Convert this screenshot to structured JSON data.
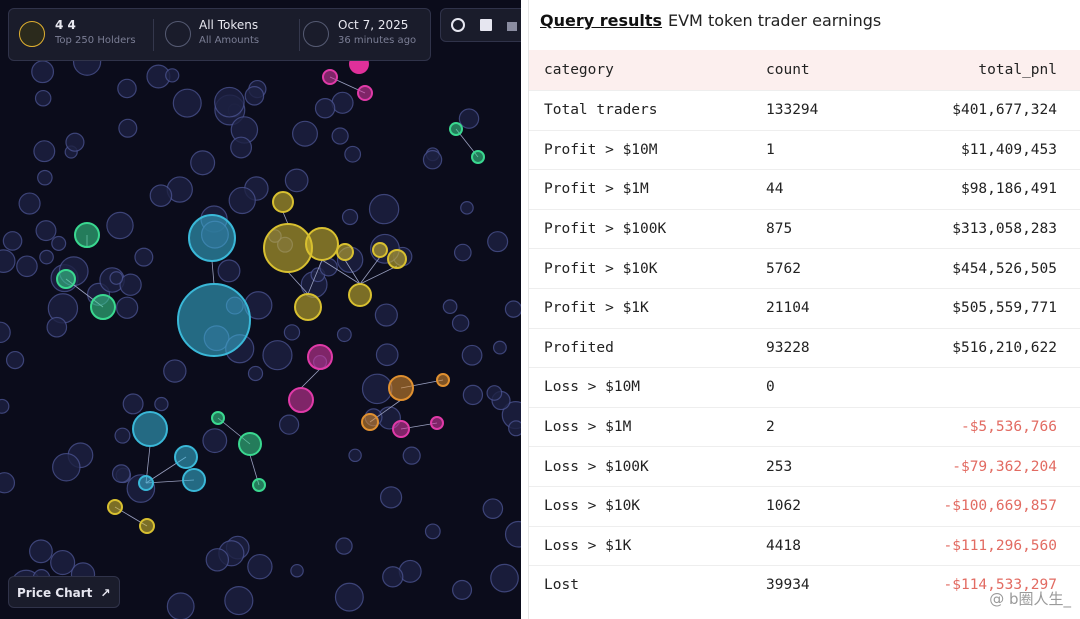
{
  "bubble_map": {
    "token": "4 4",
    "holders": "Top 250 Holders",
    "tokens": "All Tokens",
    "amounts": "All Amounts",
    "date": "Oct 7, 2025",
    "updated": "36 minutes ago",
    "price_chart": "Price Chart"
  },
  "query": {
    "tab": "Query results",
    "title": "EVM token trader earnings",
    "table": {
      "columns": [
        "category",
        "count",
        "total_pnl"
      ],
      "rows": [
        [
          "Total traders",
          133294,
          "$401,677,324"
        ],
        [
          "Profit > $10M",
          1,
          "$11,409,453"
        ],
        [
          "Profit > $1M",
          44,
          "$98,186,491"
        ],
        [
          "Profit > $100K",
          875,
          "$313,058,283"
        ],
        [
          "Profit > $10K",
          5762,
          "$454,526,505"
        ],
        [
          "Profit > $1K",
          21104,
          "$505,559,771"
        ],
        [
          "Profited",
          93228,
          "$516,210,622"
        ],
        [
          "Loss > $10M",
          0
        ],
        [
          "Loss > $1M",
          2,
          "-$5,536,766"
        ],
        [
          "Loss > $100K",
          253,
          "-$79,362,204"
        ],
        [
          "Loss > $10K",
          1062,
          "-$100,669,857"
        ],
        [
          "Loss > $1K",
          4418,
          "-$111,296,560"
        ],
        [
          "Lost",
          39934,
          "-$114,533,297"
        ]
      ]
    }
  },
  "watermark": "@ b圈人生_"
}
